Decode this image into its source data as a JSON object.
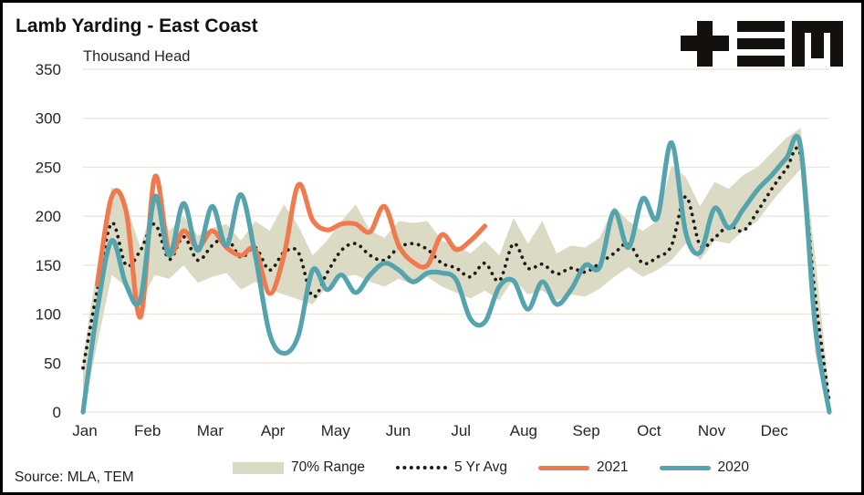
{
  "header": {
    "title": "Lamb Yarding - East Coast",
    "logo_name": "TEM logo"
  },
  "footer": {
    "source": "Source: MLA, TEM"
  },
  "legend": {
    "items": [
      {
        "label": "70% Range"
      },
      {
        "label": "5 Yr Avg"
      },
      {
        "label": "2021"
      },
      {
        "label": "2020"
      }
    ]
  },
  "chart_data": {
    "type": "line",
    "title": "Lamb Yarding - East Coast",
    "ylabel": "Thousand Head",
    "xlabel": "",
    "x_unit": "weekly, Jan-Dec",
    "months": [
      "Jan",
      "Feb",
      "Mar",
      "Apr",
      "May",
      "Jun",
      "Jul",
      "Aug",
      "Sep",
      "Oct",
      "Nov",
      "Dec"
    ],
    "y_ticks": [
      0,
      50,
      100,
      150,
      200,
      250,
      300,
      350
    ],
    "ylim": [
      0,
      350
    ],
    "grid": "horizontal",
    "grid_color": "#EAE7D8",
    "legend_position": "bottom",
    "series": [
      {
        "name": "70% Range",
        "type": "band",
        "color": "#DBDAC4",
        "upper": [
          55,
          150,
          230,
          212,
          168,
          218,
          185,
          200,
          180,
          188,
          192,
          175,
          195,
          185,
          212,
          190,
          160,
          175,
          195,
          212,
          185,
          178,
          195,
          193,
          195,
          175,
          170,
          162,
          175,
          160,
          198,
          172,
          195,
          162,
          170,
          168,
          178,
          210,
          195,
          185,
          195,
          252,
          240,
          210,
          235,
          228,
          242,
          250,
          265,
          280,
          290,
          160,
          20
        ],
        "lower": [
          0,
          70,
          140,
          128,
          112,
          140,
          136,
          150,
          132,
          138,
          142,
          125,
          133,
          125,
          120,
          115,
          110,
          128,
          138,
          140,
          133,
          128,
          136,
          130,
          138,
          128,
          122,
          116,
          124,
          114,
          136,
          120,
          124,
          114,
          120,
          118,
          126,
          138,
          148,
          138,
          145,
          155,
          172,
          155,
          175,
          172,
          185,
          195,
          215,
          232,
          248,
          60,
          0
        ]
      },
      {
        "name": "5 Yr Avg",
        "type": "dotted",
        "color": "#1F1A17",
        "values": [
          45,
          125,
          193,
          150,
          165,
          192,
          156,
          179,
          155,
          170,
          178,
          158,
          168,
          145,
          163,
          163,
          118,
          142,
          165,
          172,
          160,
          155,
          168,
          172,
          166,
          152,
          147,
          138,
          152,
          134,
          172,
          147,
          151,
          141,
          147,
          143,
          152,
          162,
          172,
          152,
          158,
          170,
          220,
          170,
          178,
          190,
          185,
          205,
          228,
          248,
          262,
          120,
          10
        ]
      },
      {
        "name": "2021",
        "type": "line",
        "color": "#F0794E",
        "values": [
          null,
          130,
          220,
          205,
          97,
          240,
          163,
          185,
          168,
          185,
          168,
          160,
          166,
          121,
          160,
          232,
          196,
          186,
          192,
          192,
          184,
          210,
          170,
          153,
          150,
          181,
          166,
          175,
          190
        ]
      },
      {
        "name": "2020",
        "type": "line",
        "color": "#55A4AD",
        "values": [
          0,
          105,
          175,
          130,
          115,
          220,
          160,
          213,
          165,
          210,
          170,
          222,
          160,
          80,
          60,
          78,
          145,
          125,
          140,
          122,
          140,
          152,
          145,
          133,
          142,
          142,
          135,
          95,
          92,
          128,
          134,
          105,
          133,
          110,
          125,
          150,
          148,
          205,
          168,
          218,
          198,
          275,
          183,
          163,
          208,
          188,
          207,
          227,
          242,
          259,
          271,
          90,
          0
        ]
      }
    ]
  }
}
